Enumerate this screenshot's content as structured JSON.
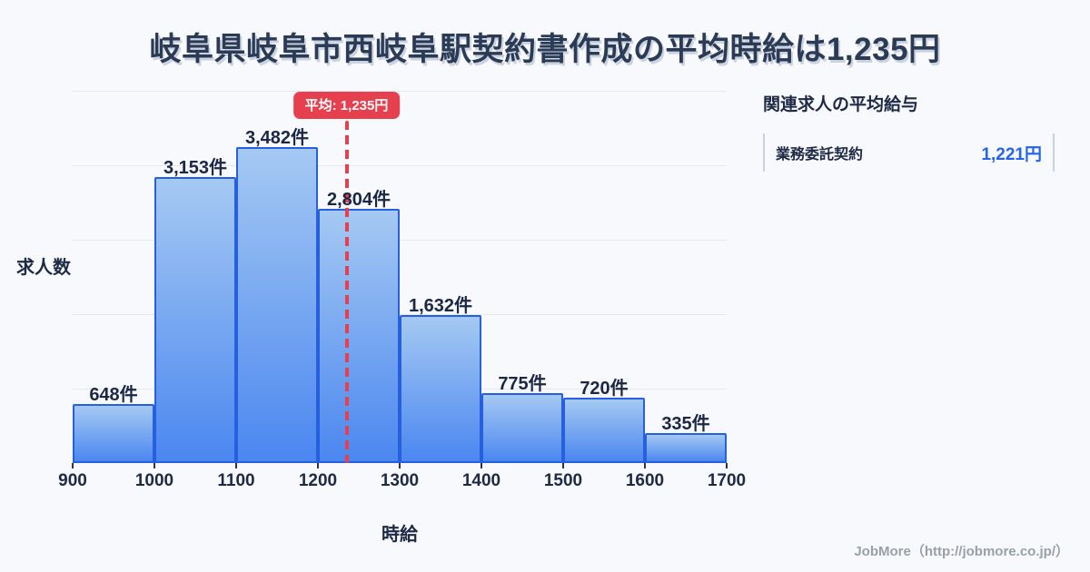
{
  "title": "岐阜県岐阜市西岐阜駅契約書作成の平均時給は1,235円",
  "colors": {
    "background": "#f7f9fc",
    "title_text": "#2b3a55",
    "dark_text": "#1d2945",
    "bar_fill_top": "#a5c9f2",
    "bar_fill_bottom": "#4b87f0",
    "bar_border": "#2760de",
    "gridline": "#e4e9f1",
    "mean_red": "#e6404e",
    "value_blue": "#2563eb",
    "footer_gray": "#99a0aa"
  },
  "chart_data": {
    "type": "bar",
    "title": "",
    "xlabel": "時給",
    "ylabel": "求人数",
    "x_range": [
      900,
      1700
    ],
    "bin_edges": [
      900,
      1000,
      1100,
      1200,
      1300,
      1400,
      1500,
      1600,
      1700
    ],
    "x_tick_labels": [
      "900",
      "1000",
      "1100",
      "1200",
      "1300",
      "1400",
      "1500",
      "1600",
      "1700"
    ],
    "values": [
      648,
      3153,
      3482,
      2804,
      1632,
      775,
      720,
      335
    ],
    "bar_labels": [
      "648件",
      "3,153件",
      "3,482件",
      "2,804件",
      "1,632件",
      "775件",
      "720件",
      "335件"
    ],
    "ylim": [
      0,
      4100
    ],
    "gridlines": 5,
    "grid": true,
    "legend": null,
    "mean_line": {
      "value": 1235,
      "label": "平均: 1,235円"
    }
  },
  "side_panel": {
    "heading": "関連求人の平均給与",
    "rows": [
      {
        "label": "業務委託契約",
        "value": "1,221円"
      }
    ]
  },
  "footer": {
    "credit": "JobMore（http://jobmore.co.jp/）"
  }
}
